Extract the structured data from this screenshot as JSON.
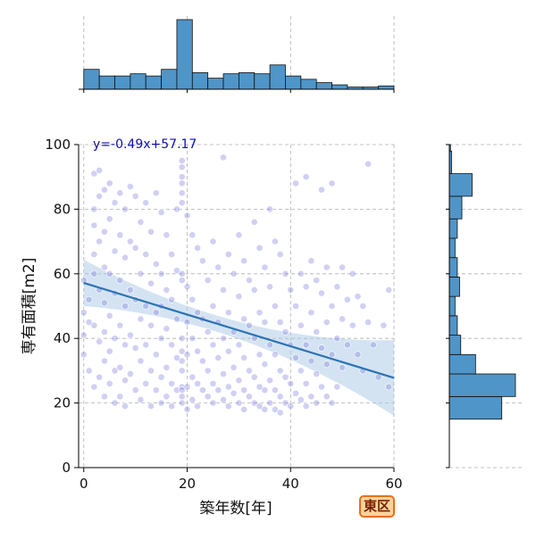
{
  "badge": "東区",
  "chart_data": {
    "type": "scatter",
    "xlabel": "築年数[年]",
    "ylabel": "専有面積[m2]",
    "xlim": [
      -1,
      60
    ],
    "ylim": [
      0,
      100
    ],
    "xticks": [
      0,
      20,
      40,
      60
    ],
    "yticks": [
      0,
      20,
      40,
      60,
      80,
      100
    ],
    "grid": true,
    "annotation": "y=-0.49x+57.17",
    "regression": {
      "slope": -0.49,
      "intercept": 57.17
    },
    "colors": {
      "point": "#7777dd",
      "point_dense": "#1010aa",
      "bar": "#4f95c8",
      "line": "#2a74b3",
      "band": "#a9c8e6",
      "annotation": "#1010aa"
    },
    "points": [
      [
        0,
        58
      ],
      [
        0,
        48
      ],
      [
        0,
        41
      ],
      [
        0,
        35
      ],
      [
        1,
        52
      ],
      [
        1,
        45
      ],
      [
        1,
        30
      ],
      [
        2,
        91
      ],
      [
        2,
        80
      ],
      [
        2,
        75
      ],
      [
        2,
        66
      ],
      [
        2,
        60
      ],
      [
        2,
        44
      ],
      [
        2,
        25
      ],
      [
        3,
        92
      ],
      [
        3,
        84
      ],
      [
        3,
        70
      ],
      [
        3,
        55
      ],
      [
        3,
        39
      ],
      [
        3,
        28
      ],
      [
        4,
        86
      ],
      [
        4,
        73
      ],
      [
        4,
        62
      ],
      [
        4,
        51
      ],
      [
        4,
        42
      ],
      [
        4,
        33
      ],
      [
        4,
        22
      ],
      [
        5,
        88
      ],
      [
        5,
        77
      ],
      [
        5,
        60
      ],
      [
        5,
        47
      ],
      [
        5,
        36
      ],
      [
        5,
        26
      ],
      [
        6,
        82
      ],
      [
        6,
        67
      ],
      [
        6,
        54
      ],
      [
        6,
        40
      ],
      [
        6,
        30
      ],
      [
        6,
        20
      ],
      [
        7,
        85
      ],
      [
        7,
        72
      ],
      [
        7,
        58
      ],
      [
        7,
        44
      ],
      [
        7,
        31
      ],
      [
        7,
        22
      ],
      [
        8,
        80
      ],
      [
        8,
        65
      ],
      [
        8,
        50
      ],
      [
        8,
        38
      ],
      [
        8,
        27
      ],
      [
        8,
        19
      ],
      [
        9,
        87
      ],
      [
        9,
        70
      ],
      [
        9,
        55
      ],
      [
        9,
        41
      ],
      [
        9,
        29
      ],
      [
        10,
        84
      ],
      [
        10,
        68
      ],
      [
        10,
        52
      ],
      [
        10,
        37
      ],
      [
        10,
        24
      ],
      [
        11,
        76
      ],
      [
        11,
        60
      ],
      [
        11,
        46
      ],
      [
        11,
        33
      ],
      [
        11,
        21
      ],
      [
        12,
        82
      ],
      [
        12,
        66
      ],
      [
        12,
        50
      ],
      [
        12,
        38
      ],
      [
        12,
        26
      ],
      [
        13,
        73
      ],
      [
        13,
        57
      ],
      [
        13,
        44
      ],
      [
        13,
        30
      ],
      [
        13,
        19
      ],
      [
        14,
        85
      ],
      [
        14,
        63
      ],
      [
        14,
        48
      ],
      [
        14,
        35
      ],
      [
        14,
        24
      ],
      [
        15,
        79
      ],
      [
        15,
        60
      ],
      [
        15,
        50
      ],
      [
        15,
        40
      ],
      [
        15,
        28
      ],
      [
        15,
        20
      ],
      [
        16,
        72
      ],
      [
        16,
        55
      ],
      [
        16,
        43
      ],
      [
        16,
        31
      ],
      [
        16,
        22
      ],
      [
        17,
        66
      ],
      [
        17,
        52
      ],
      [
        17,
        38
      ],
      [
        17,
        26
      ],
      [
        17,
        19
      ],
      [
        18,
        80
      ],
      [
        18,
        61
      ],
      [
        18,
        46
      ],
      [
        18,
        34
      ],
      [
        18,
        24
      ],
      [
        19,
        95
      ],
      [
        19,
        93
      ],
      [
        19,
        90
      ],
      [
        19,
        88
      ],
      [
        19,
        85
      ],
      [
        19,
        82
      ],
      [
        19,
        60
      ],
      [
        19,
        58
      ],
      [
        19,
        40
      ],
      [
        19,
        36
      ],
      [
        19,
        33
      ],
      [
        19,
        30
      ],
      [
        19,
        25
      ],
      [
        19,
        24
      ],
      [
        19,
        22
      ],
      [
        19,
        20
      ],
      [
        20,
        78
      ],
      [
        20,
        56
      ],
      [
        20,
        45
      ],
      [
        20,
        35
      ],
      [
        20,
        25
      ],
      [
        20,
        18
      ],
      [
        21,
        72
      ],
      [
        21,
        52
      ],
      [
        21,
        40
      ],
      [
        21,
        28
      ],
      [
        21,
        21
      ],
      [
        22,
        68
      ],
      [
        22,
        48
      ],
      [
        22,
        36
      ],
      [
        22,
        26
      ],
      [
        22,
        19
      ],
      [
        23,
        64
      ],
      [
        23,
        46
      ],
      [
        23,
        33
      ],
      [
        23,
        24
      ],
      [
        24,
        58
      ],
      [
        24,
        42
      ],
      [
        24,
        30
      ],
      [
        24,
        22
      ],
      [
        25,
        70
      ],
      [
        25,
        50
      ],
      [
        25,
        38
      ],
      [
        25,
        26
      ],
      [
        25,
        20
      ],
      [
        26,
        62
      ],
      [
        26,
        45
      ],
      [
        26,
        34
      ],
      [
        26,
        24
      ],
      [
        27,
        96
      ],
      [
        27,
        55
      ],
      [
        27,
        40
      ],
      [
        27,
        29
      ],
      [
        27,
        21
      ],
      [
        28,
        66
      ],
      [
        28,
        48
      ],
      [
        28,
        36
      ],
      [
        28,
        25
      ],
      [
        28,
        19
      ],
      [
        29,
        60
      ],
      [
        29,
        42
      ],
      [
        29,
        31
      ],
      [
        29,
        23
      ],
      [
        30,
        72
      ],
      [
        30,
        53
      ],
      [
        30,
        38
      ],
      [
        30,
        27
      ],
      [
        30,
        20
      ],
      [
        31,
        64
      ],
      [
        31,
        46
      ],
      [
        31,
        34
      ],
      [
        31,
        24
      ],
      [
        31,
        18
      ],
      [
        32,
        58
      ],
      [
        32,
        44
      ],
      [
        32,
        30
      ],
      [
        32,
        22
      ],
      [
        33,
        76
      ],
      [
        33,
        55
      ],
      [
        33,
        40
      ],
      [
        33,
        28
      ],
      [
        33,
        20
      ],
      [
        34,
        68
      ],
      [
        34,
        48
      ],
      [
        34,
        35
      ],
      [
        34,
        25
      ],
      [
        34,
        19
      ],
      [
        35,
        62
      ],
      [
        35,
        45
      ],
      [
        35,
        32
      ],
      [
        35,
        24
      ],
      [
        35,
        18
      ],
      [
        36,
        80
      ],
      [
        36,
        56
      ],
      [
        36,
        38
      ],
      [
        36,
        27
      ],
      [
        36,
        20
      ],
      [
        37,
        70
      ],
      [
        37,
        50
      ],
      [
        37,
        35
      ],
      [
        37,
        24
      ],
      [
        37,
        18
      ],
      [
        38,
        66
      ],
      [
        38,
        45
      ],
      [
        38,
        30
      ],
      [
        38,
        22
      ],
      [
        38,
        17
      ],
      [
        39,
        60
      ],
      [
        39,
        42
      ],
      [
        39,
        28
      ],
      [
        39,
        20
      ],
      [
        40,
        55
      ],
      [
        40,
        38
      ],
      [
        40,
        26
      ],
      [
        40,
        19
      ],
      [
        41,
        88
      ],
      [
        41,
        50
      ],
      [
        41,
        34
      ],
      [
        41,
        23
      ],
      [
        42,
        60
      ],
      [
        42,
        44
      ],
      [
        42,
        30
      ],
      [
        42,
        21
      ],
      [
        43,
        90
      ],
      [
        43,
        56
      ],
      [
        43,
        38
      ],
      [
        43,
        26
      ],
      [
        43,
        19
      ],
      [
        44,
        64
      ],
      [
        44,
        48
      ],
      [
        44,
        33
      ],
      [
        44,
        22
      ],
      [
        45,
        58
      ],
      [
        45,
        42
      ],
      [
        45,
        29
      ],
      [
        45,
        20
      ],
      [
        46,
        86
      ],
      [
        46,
        54
      ],
      [
        46,
        37
      ],
      [
        46,
        25
      ],
      [
        47,
        62
      ],
      [
        47,
        45
      ],
      [
        47,
        32
      ],
      [
        47,
        22
      ],
      [
        48,
        88
      ],
      [
        48,
        50
      ],
      [
        48,
        35
      ],
      [
        48,
        20
      ],
      [
        49,
        56
      ],
      [
        49,
        40
      ],
      [
        49,
        25
      ],
      [
        50,
        62
      ],
      [
        50,
        46
      ],
      [
        50,
        31
      ],
      [
        51,
        52
      ],
      [
        51,
        38
      ],
      [
        52,
        60
      ],
      [
        52,
        44
      ],
      [
        53,
        53
      ],
      [
        53,
        35
      ],
      [
        54,
        50
      ],
      [
        54,
        30
      ],
      [
        55,
        94
      ],
      [
        55,
        45
      ],
      [
        56,
        38
      ],
      [
        57,
        28
      ],
      [
        58,
        44
      ],
      [
        59,
        55
      ],
      [
        59,
        25
      ]
    ],
    "top_histogram": {
      "bin_edges": [
        0,
        3,
        6,
        9,
        12,
        15,
        18,
        21,
        24,
        27,
        30,
        33,
        36,
        39,
        42,
        45,
        48,
        51,
        54,
        57,
        60
      ],
      "counts": [
        18,
        12,
        12,
        14,
        12,
        18,
        63,
        15,
        10,
        14,
        15,
        14,
        22,
        12,
        9,
        6,
        4,
        2,
        2,
        3
      ]
    },
    "right_histogram": {
      "bin_edges": [
        15,
        22,
        29,
        35,
        41,
        47,
        53,
        59,
        65,
        71,
        77,
        84,
        91,
        98,
        100
      ],
      "counts": [
        46,
        58,
        23,
        10,
        7,
        5,
        9,
        7,
        5,
        7,
        11,
        20,
        2,
        1
      ]
    }
  }
}
